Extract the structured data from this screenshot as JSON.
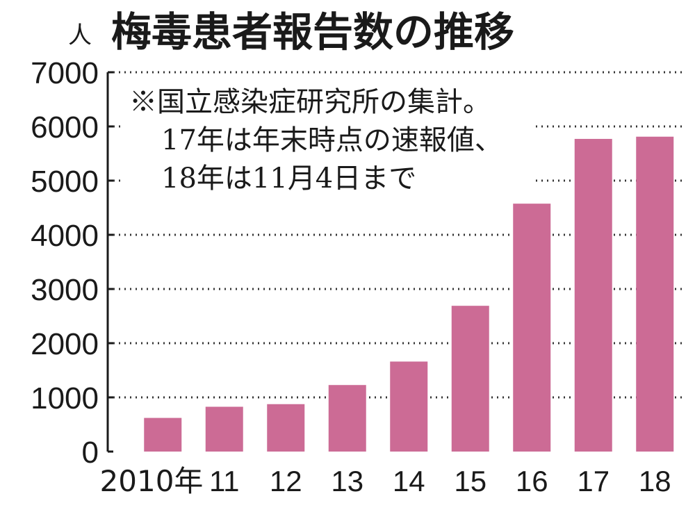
{
  "chart_data": {
    "type": "bar",
    "title": "梅毒患者報告数の推移",
    "ylabel": "人",
    "note": [
      "※国立感染症研究所の集計。",
      "17年は年末時点の速報値、",
      "18年は11月4日まで"
    ],
    "categories": [
      "2010年",
      "11",
      "12",
      "13",
      "14",
      "15",
      "16",
      "17",
      "18"
    ],
    "values": [
      621,
      827,
      875,
      1228,
      1661,
      2690,
      4575,
      5770,
      5811
    ],
    "ylim": [
      0,
      7000
    ],
    "yticks": [
      0,
      1000,
      2000,
      3000,
      4000,
      5000,
      6000,
      7000
    ],
    "grid": "dotted",
    "colors": {
      "bar": "#cc6b95",
      "grid": "#333333",
      "text": "#1a1a1a"
    }
  }
}
